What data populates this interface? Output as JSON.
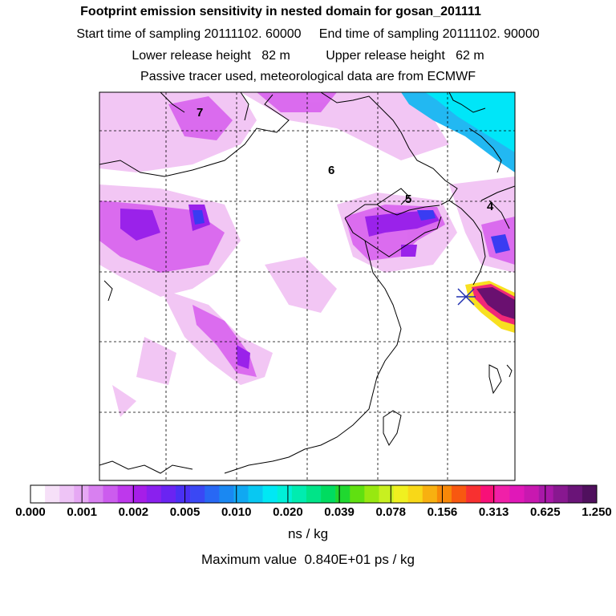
{
  "header": {
    "title": "Footprint emission sensitivity in nested domain for gosan_201111",
    "line1": "Start time of sampling 20111102. 60000     End time of sampling 20111102. 90000",
    "line2": "Lower release height   82 m          Upper release height   62 m",
    "line3": "Passive tracer used, meteorological data are from ECMWF"
  },
  "map": {
    "day_labels": [
      "7",
      "6",
      "5",
      "4"
    ],
    "colors": {
      "white": "#ffffff",
      "light_magenta": "#f3c8f3",
      "magenta": "#d45cec",
      "violet": "#b22cf0",
      "blue": "#3c2cf0",
      "cyan": "#00e6f8",
      "teal": "#22a4f0",
      "hot": "#700060"
    }
  },
  "colorbar": {
    "tick_labels": [
      "0.000",
      "0.001",
      "0.002",
      "0.005",
      "0.010",
      "0.020",
      "0.039",
      "0.078",
      "0.156",
      "0.313",
      "0.625",
      "1.250"
    ],
    "colors": [
      "#ffffff",
      "#f6e0f8",
      "#eec4f6",
      "#e6a8f4",
      "#d880f0",
      "#cc5cee",
      "#be38ec",
      "#a61ee8",
      "#8a20ee",
      "#6a24f2",
      "#4a30f4",
      "#3a48f4",
      "#2868f4",
      "#1a88f2",
      "#10a8f2",
      "#08c8f2",
      "#00e8f4",
      "#00f0d8",
      "#00ecb0",
      "#00e488",
      "#00dc60",
      "#20d830",
      "#60e010",
      "#98e810",
      "#c8f020",
      "#f0f020",
      "#f8d818",
      "#f8b010",
      "#f88808",
      "#f85810",
      "#f83030",
      "#f81078",
      "#f020a8",
      "#e018b8",
      "#c818b0",
      "#a818a8",
      "#881890",
      "#6a1478",
      "#50105e"
    ],
    "units": "ns / kg",
    "max_value_text": "Maximum value  0.840E+01 ps / kg"
  }
}
